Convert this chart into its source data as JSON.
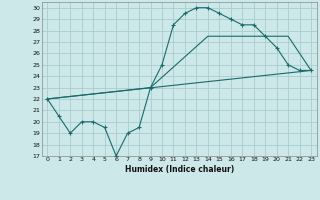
{
  "title": "",
  "xlabel": "Humidex (Indice chaleur)",
  "bg_color": "#cce8e8",
  "grid_color": "#aacccc",
  "line_color": "#1a6b6b",
  "xlim": [
    -0.5,
    23.5
  ],
  "ylim": [
    17,
    30.5
  ],
  "xticks": [
    0,
    1,
    2,
    3,
    4,
    5,
    6,
    7,
    8,
    9,
    10,
    11,
    12,
    13,
    14,
    15,
    16,
    17,
    18,
    19,
    20,
    21,
    22,
    23
  ],
  "yticks": [
    17,
    18,
    19,
    20,
    21,
    22,
    23,
    24,
    25,
    26,
    27,
    28,
    29,
    30
  ],
  "line1_x": [
    0,
    1,
    2,
    3,
    4,
    5,
    6,
    7,
    8,
    9,
    10,
    11,
    12,
    13,
    14,
    15,
    16,
    17,
    18,
    19,
    20,
    21,
    22,
    23
  ],
  "line1_y": [
    22,
    20.5,
    19,
    20,
    20,
    19.5,
    17,
    19,
    19.5,
    23,
    25,
    28.5,
    29.5,
    30.0,
    30.0,
    29.5,
    29,
    28.5,
    28.5,
    27.5,
    26.5,
    25,
    24.5,
    24.5
  ],
  "line2_x": [
    0,
    23
  ],
  "line2_y": [
    22,
    24.5
  ],
  "line3_x": [
    0,
    9,
    14,
    21,
    23
  ],
  "line3_y": [
    22,
    23.0,
    27.5,
    27.5,
    24.5
  ]
}
